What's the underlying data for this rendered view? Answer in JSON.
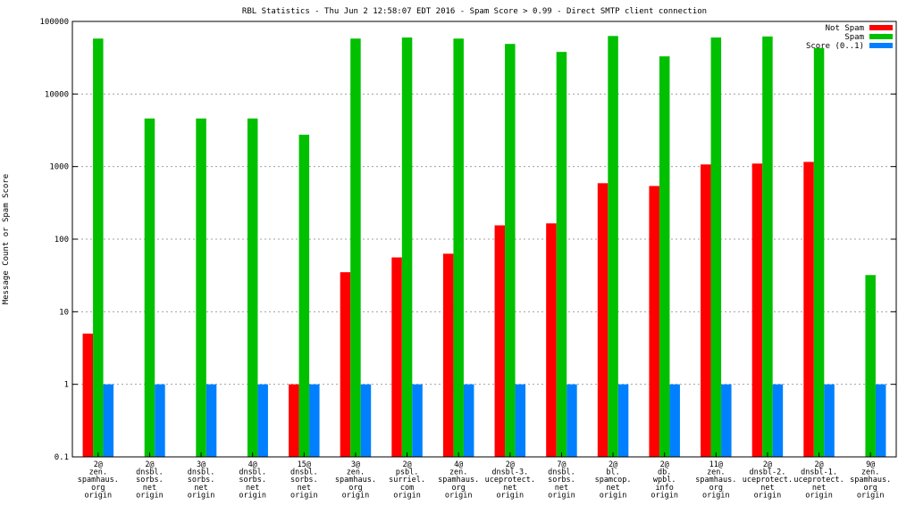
{
  "chart_data": {
    "type": "bar",
    "title": "RBL Statistics - Thu Jun  2 12:58:07 EDT 2016 - Spam Score > 0.99 - Direct SMTP client connection",
    "ylabel": "Message Count or Spam Score",
    "xlabel": "",
    "yscale": "log",
    "ylim": [
      0.1,
      100000
    ],
    "yticks": [
      "0.1",
      "1",
      "10",
      "100",
      "1000",
      "10000",
      "100000"
    ],
    "grid": true,
    "legend_position": "top-right",
    "categories": [
      [
        "2@",
        "zen.",
        "spamhaus.",
        "org",
        "origin"
      ],
      [
        "2@",
        "dnsbl.",
        "sorbs.",
        "net",
        "origin"
      ],
      [
        "3@",
        "dnsbl.",
        "sorbs.",
        "net",
        "origin"
      ],
      [
        "4@",
        "dnsbl.",
        "sorbs.",
        "net",
        "origin"
      ],
      [
        "15@",
        "dnsbl.",
        "sorbs.",
        "net",
        "origin"
      ],
      [
        "3@",
        "zen.",
        "spamhaus.",
        "org",
        "origin"
      ],
      [
        "2@",
        "psbl.",
        "surriel.",
        "com",
        "origin"
      ],
      [
        "4@",
        "zen.",
        "spamhaus.",
        "org",
        "origin"
      ],
      [
        "2@",
        "dnsbl-3.",
        "uceprotect.",
        "net",
        "origin"
      ],
      [
        "7@",
        "dnsbl.",
        "sorbs.",
        "net",
        "origin"
      ],
      [
        "2@",
        "bl.",
        "spamcop.",
        "net",
        "origin"
      ],
      [
        "2@",
        "db.",
        "wpbl.",
        "info",
        "origin"
      ],
      [
        "11@",
        "zen.",
        "spamhaus.",
        "org",
        "origin"
      ],
      [
        "2@",
        "dnsbl-2.",
        "uceprotect.",
        "net",
        "origin"
      ],
      [
        "2@",
        "dnsbl-1.",
        "uceprotect.",
        "net",
        "origin"
      ],
      [
        "9@",
        "zen.",
        "spamhaus.",
        "org",
        "origin"
      ]
    ],
    "series": [
      {
        "name": "Not Spam",
        "color": "#ff0000",
        "values": [
          5,
          null,
          null,
          null,
          1,
          35,
          56,
          63,
          155,
          165,
          590,
          540,
          1070,
          1100,
          1160,
          null
        ]
      },
      {
        "name": "Spam",
        "color": "#00c000",
        "values": [
          58000,
          4600,
          4600,
          4600,
          2750,
          58000,
          60000,
          58000,
          49000,
          38000,
          63000,
          33000,
          60000,
          62000,
          43000,
          32
        ]
      },
      {
        "name": "Score (0..1)",
        "color": "#0080ff",
        "values": [
          1,
          1,
          1,
          1,
          1,
          1,
          1,
          1,
          1,
          1,
          1,
          1,
          1,
          1,
          1,
          1
        ]
      }
    ]
  }
}
